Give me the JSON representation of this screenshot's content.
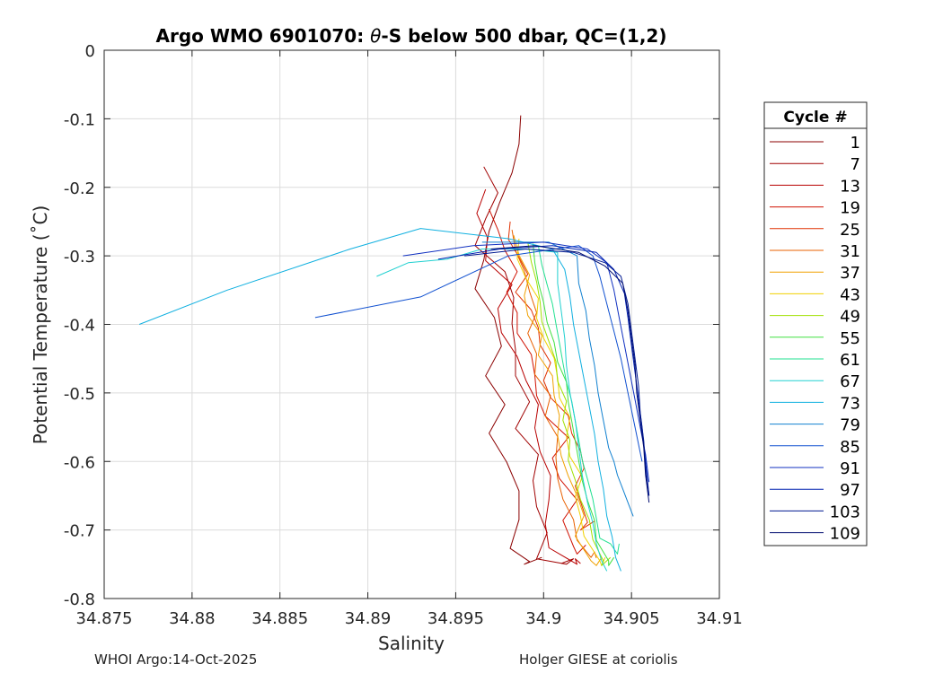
{
  "chart_data": {
    "type": "line",
    "title_prefix": "Argo WMO 6901070: ",
    "title_theta": "θ",
    "title_suffix": "-S below 500 dbar,  QC=(1,2)",
    "xlabel": "Salinity",
    "ylabel": "Potential Temperature (˚C)",
    "xlim": [
      34.875,
      34.91
    ],
    "ylim": [
      -0.8,
      0
    ],
    "grid": true,
    "x_ticks": [
      34.875,
      34.88,
      34.885,
      34.89,
      34.895,
      34.9,
      34.905,
      34.91
    ],
    "x_tick_labels": [
      "34.875",
      "34.88",
      "34.885",
      "34.89",
      "34.895",
      "34.9",
      "34.905",
      "34.91"
    ],
    "y_ticks": [
      0,
      -0.1,
      -0.2,
      -0.3,
      -0.4,
      -0.5,
      -0.6,
      -0.7,
      -0.8
    ],
    "y_tick_labels": [
      "0",
      "-0.1",
      "-0.2",
      "-0.3",
      "-0.4",
      "-0.5",
      "-0.6",
      "-0.7",
      "-0.8"
    ],
    "legend": {
      "title": "Cycle #",
      "placement": "right-outside",
      "entries": [
        "1",
        "7",
        "13",
        "19",
        "25",
        "31",
        "37",
        "43",
        "49",
        "55",
        "61",
        "67",
        "73",
        "79",
        "85",
        "91",
        "97",
        "103",
        "109"
      ],
      "colors": [
        "#8b0000",
        "#a00000",
        "#b80000",
        "#d01000",
        "#e03000",
        "#e86000",
        "#f0a000",
        "#f0d000",
        "#a0e000",
        "#40e040",
        "#20e090",
        "#20d0d0",
        "#10b0e0",
        "#1080d0",
        "#1050d0",
        "#1030c0",
        "#0020b0",
        "#001890",
        "#000c70"
      ]
    },
    "series": [
      {
        "name": "1",
        "x": [
          34.8987,
          34.8986,
          34.8982,
          34.8975,
          34.8969,
          34.8966,
          34.8961,
          34.8972,
          34.8976,
          34.8967,
          34.8978,
          34.8969,
          34.8979,
          34.8986,
          34.8986,
          34.8981,
          34.8992,
          34.8989,
          34.8999
        ],
        "y": [
          -0.095,
          -0.137,
          -0.179,
          -0.222,
          -0.264,
          -0.306,
          -0.348,
          -0.39,
          -0.432,
          -0.475,
          -0.517,
          -0.559,
          -0.601,
          -0.643,
          -0.685,
          -0.727,
          -0.746,
          -0.75,
          -0.74
        ]
      },
      {
        "name": "7",
        "x": [
          34.8966,
          34.8974,
          34.8967,
          34.8961,
          34.8978,
          34.8983,
          34.8982,
          34.8984,
          34.8984,
          34.8992,
          34.8984,
          34.8997,
          34.8994,
          34.8996,
          34.9002,
          34.8996,
          34.9013,
          34.9017,
          34.901
        ],
        "y": [
          -0.17,
          -0.208,
          -0.246,
          -0.285,
          -0.323,
          -0.361,
          -0.399,
          -0.437,
          -0.475,
          -0.513,
          -0.552,
          -0.59,
          -0.628,
          -0.666,
          -0.704,
          -0.742,
          -0.75,
          -0.742,
          -0.749
        ]
      },
      {
        "name": "13",
        "x": [
          34.8967,
          34.8962,
          34.8968,
          34.8967,
          34.8982,
          34.8974,
          34.8976,
          34.8985,
          34.899,
          34.8997,
          34.8995,
          34.8998,
          34.9004,
          34.9003,
          34.9001,
          34.9003,
          34.9019,
          34.9018,
          34.9021
        ],
        "y": [
          -0.203,
          -0.238,
          -0.273,
          -0.307,
          -0.342,
          -0.377,
          -0.412,
          -0.447,
          -0.482,
          -0.517,
          -0.551,
          -0.586,
          -0.621,
          -0.656,
          -0.691,
          -0.726,
          -0.75,
          -0.742,
          -0.749
        ]
      },
      {
        "name": "19",
        "x": [
          34.8969,
          34.8974,
          34.8978,
          34.8985,
          34.8979,
          34.8985,
          34.8985,
          34.8993,
          34.8995,
          34.8996,
          34.9001,
          34.9014,
          34.9005,
          34.9009,
          34.9019,
          34.9011,
          34.9017,
          34.9019,
          34.9024
        ],
        "y": [
          -0.232,
          -0.262,
          -0.292,
          -0.323,
          -0.353,
          -0.383,
          -0.413,
          -0.444,
          -0.474,
          -0.504,
          -0.534,
          -0.565,
          -0.595,
          -0.625,
          -0.656,
          -0.686,
          -0.724,
          -0.735,
          -0.722
        ]
      },
      {
        "name": "25",
        "x": [
          34.8981,
          34.898,
          34.8986,
          34.8991,
          34.8984,
          34.8993,
          34.8997,
          34.8998,
          34.9004,
          34.9,
          34.9004,
          34.9014,
          34.9016,
          34.9021,
          34.9023,
          34.9018,
          34.9025,
          34.9021,
          34.9029
        ],
        "y": [
          -0.25,
          -0.276,
          -0.302,
          -0.327,
          -0.353,
          -0.379,
          -0.405,
          -0.43,
          -0.456,
          -0.482,
          -0.507,
          -0.533,
          -0.559,
          -0.585,
          -0.61,
          -0.636,
          -0.689,
          -0.7,
          -0.687
        ]
      },
      {
        "name": "31",
        "x": [
          34.8982,
          34.8984,
          34.8989,
          34.8992,
          34.8996,
          34.8991,
          34.8996,
          34.8995,
          34.9004,
          34.9001,
          34.9008,
          34.9007,
          34.9008,
          34.9011,
          34.9017,
          34.9019,
          34.9027,
          34.9029,
          34.903
        ],
        "y": [
          -0.262,
          -0.292,
          -0.322,
          -0.352,
          -0.383,
          -0.413,
          -0.443,
          -0.473,
          -0.504,
          -0.534,
          -0.564,
          -0.594,
          -0.625,
          -0.655,
          -0.685,
          -0.715,
          -0.74,
          -0.732,
          -0.741
        ]
      },
      {
        "name": "37",
        "x": [
          34.8983,
          34.8986,
          34.8992,
          34.8989,
          34.8991,
          34.8999,
          34.8997,
          34.9005,
          34.9006,
          34.9009,
          34.9008,
          34.901,
          34.9014,
          34.9019,
          34.9023,
          34.9018,
          34.9027,
          34.903,
          34.9033
        ],
        "y": [
          -0.27,
          -0.299,
          -0.328,
          -0.358,
          -0.387,
          -0.416,
          -0.445,
          -0.475,
          -0.504,
          -0.533,
          -0.562,
          -0.592,
          -0.621,
          -0.65,
          -0.679,
          -0.709,
          -0.745,
          -0.752,
          -0.74
        ]
      },
      {
        "name": "43",
        "x": [
          34.8986,
          34.8985,
          34.899,
          34.8997,
          34.8996,
          34.9,
          34.9006,
          34.9008,
          34.9009,
          34.9015,
          34.9013,
          34.9015,
          34.9022,
          34.9018,
          34.9021,
          34.9023,
          34.9032,
          34.9033,
          34.9035
        ],
        "y": [
          -0.275,
          -0.304,
          -0.333,
          -0.362,
          -0.391,
          -0.42,
          -0.449,
          -0.478,
          -0.507,
          -0.536,
          -0.564,
          -0.593,
          -0.622,
          -0.651,
          -0.68,
          -0.709,
          -0.745,
          -0.752,
          -0.74
        ]
      },
      {
        "name": "49",
        "x": [
          34.8991,
          34.8993,
          34.8996,
          34.8998,
          34.8999,
          34.9003,
          34.9007,
          34.9008,
          34.9013,
          34.9011,
          34.9015,
          34.9014,
          34.9018,
          34.9021,
          34.9026,
          34.9028,
          34.9034,
          34.9033,
          34.9038
        ],
        "y": [
          -0.28,
          -0.309,
          -0.338,
          -0.367,
          -0.396,
          -0.425,
          -0.454,
          -0.483,
          -0.512,
          -0.54,
          -0.569,
          -0.598,
          -0.627,
          -0.656,
          -0.685,
          -0.714,
          -0.745,
          -0.752,
          -0.74
        ]
      },
      {
        "name": "55",
        "x": [
          34.8994,
          34.8995,
          34.8997,
          34.9,
          34.9002,
          34.9006,
          34.9008,
          34.9013,
          34.9014,
          34.9016,
          34.9018,
          34.902,
          34.9022,
          34.9025,
          34.9029,
          34.903,
          34.9037,
          34.9037,
          34.904
        ],
        "y": [
          -0.282,
          -0.31,
          -0.339,
          -0.368,
          -0.397,
          -0.426,
          -0.455,
          -0.484,
          -0.513,
          -0.541,
          -0.57,
          -0.599,
          -0.628,
          -0.657,
          -0.686,
          -0.715,
          -0.745,
          -0.752,
          -0.74
        ]
      },
      {
        "name": "61",
        "x": [
          34.8997,
          34.8999,
          34.9002,
          34.9005,
          34.9007,
          34.9009,
          34.9011,
          34.9013,
          34.9016,
          34.9018,
          34.902,
          34.9022,
          34.9025,
          34.9028,
          34.903,
          34.9032,
          34.9038,
          34.9042,
          34.9043
        ],
        "y": [
          -0.285,
          -0.313,
          -0.342,
          -0.37,
          -0.399,
          -0.427,
          -0.456,
          -0.484,
          -0.512,
          -0.541,
          -0.569,
          -0.598,
          -0.626,
          -0.655,
          -0.683,
          -0.712,
          -0.72,
          -0.735,
          -0.72
        ]
      },
      {
        "name": "67",
        "x": [
          34.8905,
          34.8923,
          34.8945,
          34.8965,
          34.899,
          34.9008,
          34.9008,
          34.901,
          34.9012,
          34.9013,
          34.9015,
          34.9018,
          34.902,
          34.9022,
          34.9025,
          34.9028,
          34.903,
          34.9033,
          34.9036
        ],
        "y": [
          -0.33,
          -0.31,
          -0.305,
          -0.29,
          -0.29,
          -0.295,
          -0.34,
          -0.38,
          -0.42,
          -0.46,
          -0.5,
          -0.54,
          -0.58,
          -0.62,
          -0.66,
          -0.69,
          -0.72,
          -0.745,
          -0.76
        ]
      },
      {
        "name": "73",
        "x": [
          34.877,
          34.882,
          34.889,
          34.893,
          34.898,
          34.9005,
          34.9012,
          34.9015,
          34.9017,
          34.902,
          34.9023,
          34.9026,
          34.9029,
          34.9031,
          34.9034,
          34.9036,
          34.9039,
          34.9041,
          34.9044
        ],
        "y": [
          -0.4,
          -0.35,
          -0.29,
          -0.26,
          -0.275,
          -0.29,
          -0.32,
          -0.36,
          -0.4,
          -0.44,
          -0.48,
          -0.52,
          -0.56,
          -0.6,
          -0.64,
          -0.68,
          -0.71,
          -0.74,
          -0.76
        ]
      },
      {
        "name": "79",
        "x": [
          34.8965,
          34.9003,
          34.9019,
          34.902,
          34.9024,
          34.9026,
          34.9029,
          34.9031,
          34.9034,
          34.9037,
          34.904,
          34.9042,
          34.9045,
          34.9048,
          34.9051
        ],
        "y": [
          -0.28,
          -0.28,
          -0.3,
          -0.34,
          -0.38,
          -0.42,
          -0.46,
          -0.5,
          -0.54,
          -0.58,
          -0.6,
          -0.62,
          -0.64,
          -0.66,
          -0.68
        ]
      },
      {
        "name": "85",
        "x": [
          34.887,
          34.893,
          34.898,
          34.902,
          34.9028,
          34.9032,
          34.9036,
          34.904,
          34.9044,
          34.9048,
          34.9052,
          34.9056
        ],
        "y": [
          -0.39,
          -0.36,
          -0.3,
          -0.285,
          -0.3,
          -0.33,
          -0.37,
          -0.41,
          -0.45,
          -0.5,
          -0.55,
          -0.6
        ]
      },
      {
        "name": "91",
        "x": [
          34.892,
          34.896,
          34.9,
          34.9025,
          34.9036,
          34.904,
          34.9043,
          34.9046,
          34.9049,
          34.9052,
          34.9055,
          34.9058,
          34.906
        ],
        "y": [
          -0.3,
          -0.285,
          -0.28,
          -0.29,
          -0.31,
          -0.35,
          -0.39,
          -0.43,
          -0.47,
          -0.51,
          -0.55,
          -0.59,
          -0.63
        ]
      },
      {
        "name": "97",
        "x": [
          34.894,
          34.8975,
          34.9005,
          34.903,
          34.904,
          34.9046,
          34.9048,
          34.905,
          34.9052,
          34.9054,
          34.9056,
          34.9058,
          34.906
        ],
        "y": [
          -0.305,
          -0.29,
          -0.285,
          -0.295,
          -0.32,
          -0.355,
          -0.39,
          -0.43,
          -0.47,
          -0.51,
          -0.55,
          -0.6,
          -0.65
        ]
      },
      {
        "name": "103",
        "x": [
          34.8955,
          34.899,
          34.9017,
          34.9035,
          34.9044,
          34.9048,
          34.905,
          34.9052,
          34.9054,
          34.9055,
          34.9057,
          34.9058,
          34.906
        ],
        "y": [
          -0.3,
          -0.29,
          -0.295,
          -0.31,
          -0.33,
          -0.37,
          -0.41,
          -0.45,
          -0.49,
          -0.53,
          -0.57,
          -0.61,
          -0.65
        ]
      },
      {
        "name": "109",
        "x": [
          34.897,
          34.8995,
          34.902,
          34.9035,
          34.9045,
          34.9048,
          34.905,
          34.9052,
          34.9053,
          34.9055,
          34.9057,
          34.9058,
          34.906
        ],
        "y": [
          -0.29,
          -0.285,
          -0.295,
          -0.315,
          -0.34,
          -0.38,
          -0.42,
          -0.46,
          -0.5,
          -0.54,
          -0.58,
          -0.62,
          -0.66
        ]
      }
    ]
  },
  "footer": {
    "left": "WHOI Argo:14-Oct-2025",
    "right": "Holger GIESE at coriolis"
  }
}
